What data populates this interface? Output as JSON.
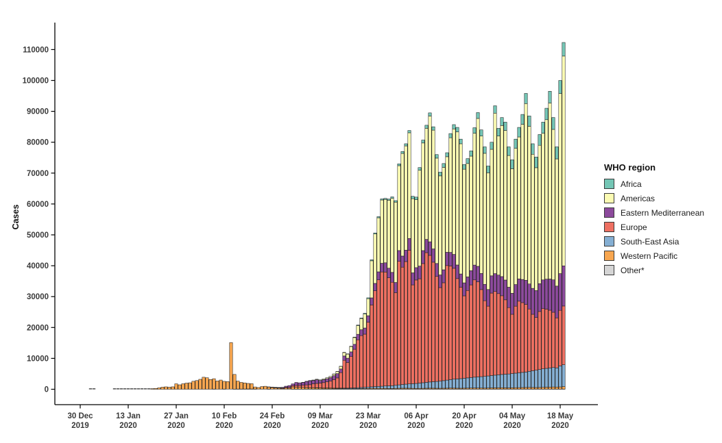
{
  "figure": {
    "y_axis_title": "Cases",
    "y_ticks": [
      0,
      10000,
      20000,
      30000,
      40000,
      50000,
      60000,
      70000,
      80000,
      90000,
      100000,
      110000
    ],
    "x_ticks": [
      {
        "line1": "30 Dec",
        "line2": "2019",
        "day": 0
      },
      {
        "line1": "13 Jan",
        "line2": "2020",
        "day": 14
      },
      {
        "line1": "27 Jan",
        "line2": "2020",
        "day": 28
      },
      {
        "line1": "10 Feb",
        "line2": "2020",
        "day": 42
      },
      {
        "line1": "24 Feb",
        "line2": "2020",
        "day": 56
      },
      {
        "line1": "09 Mar",
        "line2": "2020",
        "day": 70
      },
      {
        "line1": "23 Mar",
        "line2": "2020",
        "day": 84
      },
      {
        "line1": "06 Apr",
        "line2": "2020",
        "day": 98
      },
      {
        "line1": "20 Apr",
        "line2": "2020",
        "day": 112
      },
      {
        "line1": "04 May",
        "line2": "2020",
        "day": 126
      },
      {
        "line1": "18 May",
        "line2": "2020",
        "day": 140
      }
    ]
  },
  "legend": {
    "title": "WHO region",
    "items": [
      {
        "label": "Africa",
        "color": "#74C6B5"
      },
      {
        "label": "Americas",
        "color": "#FBFBB3"
      },
      {
        "label": "Eastern Mediterranean",
        "color": "#8C4A9C"
      },
      {
        "label": "Europe",
        "color": "#EE7062"
      },
      {
        "label": "South-East Asia",
        "color": "#85AFD3"
      },
      {
        "label": "Western Pacific",
        "color": "#F7A650"
      },
      {
        "label": "Other*",
        "color": "#D5D5D5"
      }
    ]
  },
  "chart_data": {
    "type": "bar",
    "stacked": true,
    "title": "",
    "xlabel": "",
    "ylabel": "Cases",
    "ylim": [
      0,
      115000
    ],
    "grid": false,
    "legend_position": "right",
    "interval": "daily",
    "start_date": "2019-12-30",
    "end_date": "2020-05-19",
    "n_days": 142,
    "stack_order_bottom_to_top": [
      "Other*",
      "Western Pacific",
      "South-East Asia",
      "Europe",
      "Eastern Mediterranean",
      "Americas",
      "Africa"
    ],
    "series": [
      {
        "name": "Other*",
        "color": "#D5D5D5",
        "values": [
          null,
          null,
          null,
          0,
          0,
          null,
          null,
          null,
          null,
          null,
          0,
          0,
          0,
          0,
          0,
          0,
          0,
          0,
          0,
          0,
          0,
          0,
          0,
          0,
          0,
          0,
          0,
          0,
          0,
          0,
          0,
          0,
          0,
          0,
          0,
          0,
          0,
          0,
          0,
          60,
          5,
          10,
          65,
          40,
          40,
          45,
          70,
          70,
          75,
          100,
          90,
          80,
          30,
          15,
          25,
          60,
          30,
          20,
          25,
          10,
          15,
          10,
          50,
          50,
          50,
          50,
          50,
          50,
          50,
          50,
          50,
          50,
          50,
          50,
          50,
          50,
          50,
          50,
          50,
          50,
          50,
          50,
          50,
          50,
          50,
          50,
          50,
          50,
          50,
          50,
          50,
          50,
          50,
          60,
          60,
          60,
          60,
          60,
          60,
          60,
          60,
          60,
          60,
          60,
          60,
          60,
          60,
          60,
          60,
          60,
          60,
          60,
          60,
          60,
          60,
          60,
          60,
          60,
          60,
          60,
          60,
          60,
          60,
          60,
          60,
          60,
          60,
          60,
          60,
          60,
          60,
          60,
          60,
          60,
          60,
          60,
          60,
          60,
          60,
          60,
          60,
          60
        ]
      },
      {
        "name": "Western Pacific",
        "color": "#F7A650",
        "values": [
          null,
          null,
          null,
          2,
          3,
          null,
          null,
          null,
          null,
          null,
          10,
          15,
          20,
          25,
          30,
          40,
          50,
          70,
          90,
          120,
          150,
          210,
          280,
          460,
          680,
          780,
          670,
          790,
          1760,
          1440,
          1780,
          1990,
          2090,
          2590,
          2820,
          3220,
          3900,
          3720,
          3160,
          3350,
          2680,
          2970,
          2500,
          2440,
          15060,
          4760,
          2580,
          2150,
          1980,
          1790,
          1710,
          670,
          530,
          860,
          940,
          640,
          530,
          390,
          330,
          220,
          360,
          310,
          690,
          600,
          560,
          540,
          480,
          400,
          420,
          390,
          330,
          280,
          290,
          250,
          210,
          190,
          180,
          160,
          120,
          130,
          140,
          160,
          180,
          190,
          220,
          250,
          270,
          260,
          240,
          230,
          210,
          200,
          230,
          260,
          280,
          290,
          270,
          240,
          220,
          230,
          250,
          280,
          300,
          290,
          270,
          260,
          280,
          300,
          320,
          310,
          290,
          280,
          300,
          320,
          340,
          360,
          350,
          330,
          320,
          350,
          380,
          400,
          420,
          430,
          410,
          390,
          420,
          450,
          470,
          500,
          520,
          540,
          520,
          500,
          530,
          560,
          600,
          640,
          680,
          650,
          700,
          800
        ]
      },
      {
        "name": "South-East Asia",
        "color": "#85AFD3",
        "values": [
          null,
          null,
          null,
          0,
          0,
          null,
          null,
          null,
          null,
          null,
          0,
          0,
          0,
          0,
          0,
          0,
          0,
          0,
          0,
          0,
          0,
          0,
          1,
          2,
          2,
          3,
          3,
          4,
          4,
          5,
          5,
          5,
          6,
          6,
          6,
          7,
          7,
          8,
          8,
          8,
          9,
          9,
          10,
          10,
          10,
          10,
          10,
          10,
          10,
          10,
          10,
          10,
          10,
          10,
          10,
          10,
          10,
          10,
          10,
          10,
          10,
          10,
          10,
          12,
          15,
          20,
          25,
          30,
          40,
          50,
          60,
          70,
          80,
          90,
          110,
          130,
          150,
          170,
          200,
          230,
          260,
          300,
          350,
          400,
          450,
          500,
          560,
          620,
          700,
          780,
          850,
          900,
          1000,
          1100,
          1200,
          1300,
          1400,
          1500,
          1600,
          1700,
          1800,
          1900,
          2000,
          2100,
          2200,
          2300,
          2450,
          2600,
          2750,
          2900,
          3000,
          3100,
          3200,
          3300,
          3400,
          3500,
          3600,
          3700,
          3800,
          3900,
          4000,
          4100,
          4200,
          4300,
          4400,
          4500,
          4600,
          4700,
          4800,
          4900,
          5000,
          5200,
          5400,
          5600,
          5800,
          6000,
          6100,
          6200,
          6300,
          6200,
          6800,
          7100
        ]
      },
      {
        "name": "Europe",
        "color": "#EE7062",
        "values": [
          null,
          null,
          null,
          0,
          0,
          null,
          null,
          null,
          null,
          null,
          0,
          0,
          0,
          0,
          0,
          0,
          0,
          0,
          0,
          0,
          0,
          0,
          0,
          0,
          0,
          3,
          2,
          0,
          5,
          4,
          6,
          5,
          8,
          10,
          8,
          6,
          10,
          5,
          4,
          6,
          5,
          3,
          4,
          5,
          6,
          4,
          5,
          3,
          4,
          5,
          4,
          5,
          6,
          8,
          15,
          30,
          70,
          110,
          90,
          150,
          220,
          280,
          400,
          560,
          620,
          700,
          850,
          1000,
          1250,
          1400,
          1550,
          1750,
          2000,
          2300,
          2750,
          3300,
          5000,
          9000,
          8300,
          10200,
          12500,
          15500,
          16800,
          17200,
          21000,
          26500,
          31000,
          34500,
          37000,
          36900,
          35000,
          33500,
          30000,
          40000,
          38000,
          39700,
          43300,
          32000,
          33500,
          33800,
          38600,
          42000,
          41000,
          38700,
          34000,
          30300,
          31700,
          37100,
          36800,
          35900,
          32500,
          29600,
          26700,
          28300,
          30000,
          31500,
          30800,
          28200,
          24500,
          22600,
          26700,
          27100,
          26300,
          25500,
          24100,
          21500,
          19200,
          21700,
          23200,
          22600,
          21900,
          20200,
          18300,
          17100,
          18800,
          19500,
          19200,
          18700,
          17900,
          16200,
          18000,
          19000
        ]
      },
      {
        "name": "Eastern Mediterranean",
        "color": "#8C4A9C",
        "values": [
          null,
          null,
          null,
          0,
          0,
          null,
          null,
          null,
          null,
          null,
          0,
          0,
          0,
          0,
          0,
          0,
          0,
          0,
          0,
          0,
          0,
          0,
          0,
          0,
          0,
          0,
          0,
          0,
          0,
          0,
          4,
          0,
          2,
          2,
          2,
          2,
          2,
          2,
          2,
          2,
          2,
          2,
          2,
          2,
          2,
          2,
          2,
          2,
          2,
          2,
          2,
          2,
          5,
          20,
          30,
          45,
          60,
          100,
          130,
          250,
          390,
          590,
          600,
          1000,
          840,
          900,
          1100,
          1250,
          1100,
          1200,
          850,
          950,
          1000,
          1100,
          1300,
          1400,
          1200,
          1400,
          1400,
          1500,
          1600,
          1800,
          1900,
          2000,
          2100,
          2300,
          2400,
          2600,
          2800,
          3000,
          3100,
          3200,
          3300,
          3500,
          3600,
          3700,
          3800,
          3900,
          4000,
          4100,
          4200,
          4300,
          4400,
          4300,
          4200,
          4100,
          4200,
          4300,
          4400,
          4500,
          4400,
          4300,
          4200,
          4400,
          4600,
          4800,
          5000,
          5200,
          5300,
          5400,
          5600,
          5800,
          6000,
          6200,
          6400,
          6600,
          6800,
          7000,
          7200,
          7500,
          7800,
          8100,
          8400,
          8700,
          9000,
          9300,
          9700,
          10100,
          10500,
          10300,
          11900,
          13000
        ]
      },
      {
        "name": "Americas",
        "color": "#FBFBB3",
        "values": [
          null,
          null,
          null,
          0,
          0,
          null,
          null,
          null,
          null,
          null,
          0,
          0,
          0,
          0,
          0,
          0,
          0,
          0,
          0,
          0,
          0,
          0,
          1,
          1,
          1,
          2,
          2,
          2,
          3,
          3,
          3,
          3,
          4,
          4,
          5,
          5,
          5,
          6,
          6,
          6,
          6,
          7,
          7,
          7,
          8,
          8,
          8,
          8,
          9,
          9,
          9,
          9,
          10,
          10,
          10,
          12,
          15,
          15,
          18,
          20,
          22,
          25,
          25,
          30,
          40,
          60,
          80,
          100,
          130,
          160,
          200,
          250,
          320,
          400,
          500,
          650,
          800,
          1100,
          1300,
          1700,
          2200,
          2800,
          3600,
          4500,
          5500,
          12000,
          16000,
          17500,
          20500,
          20500,
          22000,
          24000,
          26000,
          27480,
          33210,
          33750,
          34220,
          24000,
          22000,
          31010,
          34840,
          35960,
          40690,
          38450,
          34120,
          32080,
          33160,
          30940,
          37120,
          40630,
          43100,
          42160,
          36790,
          36720,
          37100,
          42680,
          47890,
          44510,
          42420,
          37790,
          40960,
          51940,
          45020,
          48910,
          48430,
          42650,
          40320,
          44090,
          45970,
          50240,
          57220,
          51050,
          43420,
          39790,
          44810,
          47480,
          51640,
          57000,
          48710,
          41190,
          58290,
          67940
        ]
      },
      {
        "name": "Africa",
        "color": "#74C6B5",
        "values": [
          null,
          null,
          null,
          0,
          0,
          null,
          null,
          null,
          null,
          null,
          0,
          0,
          0,
          0,
          0,
          0,
          0,
          0,
          0,
          0,
          0,
          0,
          0,
          0,
          0,
          0,
          0,
          0,
          0,
          0,
          0,
          0,
          0,
          0,
          0,
          0,
          0,
          0,
          0,
          0,
          0,
          0,
          0,
          0,
          0,
          0,
          0,
          0,
          0,
          0,
          0,
          0,
          0,
          0,
          0,
          0,
          1,
          1,
          2,
          2,
          3,
          3,
          5,
          6,
          8,
          10,
          12,
          15,
          18,
          20,
          25,
          30,
          35,
          40,
          50,
          60,
          70,
          80,
          100,
          120,
          150,
          180,
          220,
          260,
          300,
          320,
          340,
          360,
          350,
          370,
          380,
          450,
          500,
          600,
          650,
          700,
          750,
          800,
          850,
          900,
          950,
          1000,
          1050,
          1100,
          1150,
          1200,
          1250,
          1300,
          1350,
          1400,
          1450,
          1500,
          1550,
          1600,
          1700,
          1800,
          1900,
          2000,
          2100,
          2200,
          2300,
          2400,
          2500,
          2600,
          2700,
          2800,
          2900,
          3000,
          3100,
          3200,
          3300,
          3350,
          3400,
          3450,
          3500,
          3600,
          3700,
          3800,
          3850,
          3900,
          4250,
          4400
        ]
      }
    ]
  }
}
